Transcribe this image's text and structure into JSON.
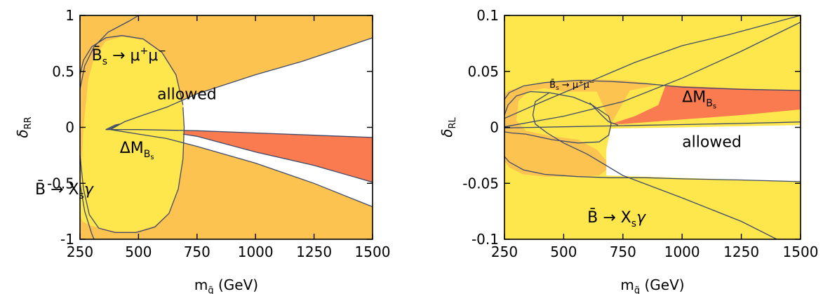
{
  "chart_data": [
    {
      "id": "left",
      "type": "area",
      "xlabel": "m",
      "xlabel_sub": "q̃",
      "xlabel_unit": "(GeV)",
      "ylabel": "δ",
      "ylabel_sub": "RR",
      "xlim": [
        250,
        1500
      ],
      "ylim": [
        -1,
        1
      ],
      "xticks": [
        "250",
        "500",
        "750",
        "1000",
        "1250",
        "1500"
      ],
      "xtick_values": [
        250,
        500,
        750,
        1000,
        1250,
        1500
      ],
      "yticks": [
        "1",
        "0.5",
        "0",
        "-0.5",
        "-1"
      ],
      "ytick_values": [
        1,
        0.5,
        0,
        -0.5,
        -1
      ],
      "colors": {
        "background": "#fde74c",
        "bs_mumu": "#fdc350",
        "delta_m": "#fb7b50",
        "allowed": "#ffffff",
        "curve": "#3f4a6a"
      },
      "labels": {
        "bs": {
          "base": "B̄",
          "sub": "s",
          "text": " → μ",
          "sup1": "+",
          "mu2": "μ",
          "sup2": "−",
          "x": 300,
          "y": 0.6
        },
        "allowed": {
          "text": "allowed",
          "x": 580,
          "y": 0.25
        },
        "dm": {
          "text": "ΔM",
          "sub": "B",
          "subsub": "s",
          "x": 420,
          "y": -0.23
        },
        "bxs": {
          "text": "B̄ → X",
          "sub": "s",
          "tail": "γ",
          "x": 58,
          "y": -0.6
        }
      },
      "regions": {
        "orange_upper": [
          [
            250,
            -0.02
          ],
          [
            250,
            1
          ],
          [
            1500,
            1
          ],
          [
            1500,
            0.8
          ],
          [
            1200,
            0.59
          ],
          [
            1000,
            0.47
          ],
          [
            750,
            0.3
          ],
          [
            620,
            0.18
          ],
          [
            520,
            0.11
          ],
          [
            440,
            0.05
          ],
          [
            380,
            0.01
          ]
        ],
        "orange_lower": [
          [
            250,
            -0.02
          ],
          [
            380,
            -0.02
          ],
          [
            500,
            -0.06
          ],
          [
            620,
            -0.1
          ],
          [
            750,
            -0.17
          ],
          [
            1000,
            -0.32
          ],
          [
            1250,
            -0.5
          ],
          [
            1500,
            -0.71
          ],
          [
            1500,
            -1
          ],
          [
            250,
            -1
          ]
        ],
        "white_allowed": [
          [
            380,
            -0.02
          ],
          [
            440,
            0.05
          ],
          [
            520,
            0.11
          ],
          [
            620,
            0.18
          ],
          [
            750,
            0.3
          ],
          [
            1000,
            0.47
          ],
          [
            1200,
            0.59
          ],
          [
            1500,
            0.8
          ],
          [
            1500,
            -0.71
          ],
          [
            1250,
            -0.5
          ],
          [
            1000,
            -0.32
          ],
          [
            750,
            -0.17
          ],
          [
            620,
            -0.1
          ],
          [
            500,
            -0.06
          ]
        ],
        "red_dm": [
          [
            690,
            -0.03
          ],
          [
            1000,
            -0.05
          ],
          [
            1250,
            -0.07
          ],
          [
            1500,
            -0.09
          ],
          [
            1500,
            -0.49
          ],
          [
            1250,
            -0.34
          ],
          [
            1000,
            -0.22
          ],
          [
            750,
            -0.08
          ],
          [
            690,
            -0.06
          ]
        ],
        "yellow_oval": [
          [
            250,
            -0.78
          ],
          [
            255,
            -0.4
          ],
          [
            265,
            0
          ],
          [
            285,
            0.42
          ],
          [
            310,
            0.62
          ],
          [
            360,
            0.77
          ],
          [
            430,
            0.81
          ],
          [
            520,
            0.78
          ],
          [
            600,
            0.66
          ],
          [
            660,
            0.46
          ],
          [
            690,
            0.22
          ],
          [
            695,
            0
          ],
          [
            690,
            -0.28
          ],
          [
            670,
            -0.55
          ],
          [
            630,
            -0.76
          ],
          [
            570,
            -0.88
          ],
          [
            490,
            -0.93
          ],
          [
            400,
            -0.93
          ],
          [
            340,
            -0.9
          ],
          [
            300,
            -0.88
          ],
          [
            260,
            -0.84
          ]
        ]
      },
      "curves": [
        [
          [
            250,
            0.47
          ],
          [
            265,
            0.6
          ],
          [
            300,
            0.72
          ],
          [
            360,
            0.8
          ],
          [
            430,
            0.82
          ],
          [
            520,
            0.79
          ],
          [
            600,
            0.67
          ],
          [
            660,
            0.47
          ],
          [
            690,
            0.2
          ]
        ],
        [
          [
            250,
            -0.25
          ],
          [
            265,
            -0.55
          ],
          [
            290,
            -0.78
          ],
          [
            330,
            -0.9
          ],
          [
            400,
            -0.94
          ],
          [
            490,
            -0.94
          ],
          [
            570,
            -0.89
          ],
          [
            630,
            -0.77
          ],
          [
            670,
            -0.55
          ],
          [
            690,
            -0.28
          ],
          [
            695,
            0
          ],
          [
            690,
            0.18
          ]
        ],
        [
          [
            250,
            0.34
          ],
          [
            270,
            0.55
          ],
          [
            310,
            0.72
          ],
          [
            370,
            0.85
          ],
          [
            460,
            0.95
          ],
          [
            500,
            1.0
          ]
        ],
        [
          [
            250,
            -0.5
          ],
          [
            270,
            -0.75
          ],
          [
            300,
            -0.95
          ],
          [
            310,
            -1
          ]
        ],
        [
          [
            380,
            -0.02
          ],
          [
            440,
            0.05
          ],
          [
            520,
            0.11
          ],
          [
            620,
            0.18
          ],
          [
            750,
            0.3
          ],
          [
            1000,
            0.47
          ],
          [
            1200,
            0.59
          ],
          [
            1500,
            0.8
          ]
        ],
        [
          [
            380,
            -0.02
          ],
          [
            500,
            -0.06
          ],
          [
            620,
            -0.1
          ],
          [
            750,
            -0.17
          ],
          [
            1000,
            -0.32
          ],
          [
            1250,
            -0.5
          ],
          [
            1500,
            -0.71
          ]
        ],
        [
          [
            360,
            -0.02
          ],
          [
            500,
            -0.02
          ],
          [
            750,
            -0.03
          ],
          [
            1000,
            -0.05
          ],
          [
            1250,
            -0.07
          ],
          [
            1500,
            -0.09
          ]
        ],
        [
          [
            690,
            -0.06
          ],
          [
            750,
            -0.08
          ],
          [
            1000,
            -0.22
          ],
          [
            1250,
            -0.34
          ],
          [
            1500,
            -0.49
          ]
        ],
        [
          [
            360,
            -0.02
          ],
          [
            380,
            0.0
          ],
          [
            400,
            0.02
          ],
          [
            420,
            0.03
          ],
          [
            400,
            0.01
          ],
          [
            380,
            -0.01
          ],
          [
            370,
            -0.02
          ]
        ]
      ]
    },
    {
      "id": "right",
      "type": "area",
      "xlabel": "m",
      "xlabel_sub": "q̃",
      "xlabel_unit": "(GeV)",
      "ylabel": "δ",
      "ylabel_sub": "RL",
      "xlim": [
        250,
        1500
      ],
      "ylim": [
        -0.1,
        0.1
      ],
      "xticks": [
        "250",
        "500",
        "750",
        "1000",
        "1250",
        "1500"
      ],
      "xtick_values": [
        250,
        500,
        750,
        1000,
        1250,
        1500
      ],
      "yticks": [
        "0.1",
        "0.05",
        "0",
        "-0.05",
        "-0.1"
      ],
      "ytick_values": [
        0.1,
        0.05,
        0,
        -0.05,
        -0.1
      ],
      "colors": {
        "background": "#fde74c",
        "bs_mumu": "#fdc350",
        "delta_m": "#fb7b50",
        "allowed": "#ffffff",
        "curve": "#3f4a6a"
      },
      "labels": {
        "bs": {
          "base": "B̄",
          "sub": "s",
          "text": " → μ",
          "sup1": "+",
          "mu2": "μ",
          "sup2": "−",
          "x": 440,
          "y": 0.0355
        },
        "allowed": {
          "text": "allowed",
          "x": 1000,
          "y": -0.0175
        },
        "dm": {
          "text": "ΔM",
          "sub": "B",
          "subsub": "s",
          "x": 1000,
          "y": 0.0225
        },
        "bxs": {
          "text": "B̄ → X",
          "sub": "s",
          "tail": "γ",
          "x": 600,
          "y": -0.085
        }
      },
      "regions": {
        "orange_ring": [
          [
            250,
            -0.03
          ],
          [
            270,
            -0.036
          ],
          [
            330,
            -0.042
          ],
          [
            420,
            -0.044
          ],
          [
            560,
            -0.044
          ],
          [
            650,
            -0.043
          ],
          [
            700,
            -0.035
          ],
          [
            640,
            -0.02
          ],
          [
            560,
            -0.011
          ],
          [
            450,
            -0.008
          ],
          [
            340,
            -0.003
          ],
          [
            300,
            0.006
          ],
          [
            310,
            0.024
          ],
          [
            350,
            0.032
          ],
          [
            420,
            0.035
          ],
          [
            500,
            0.032
          ],
          [
            640,
            0.032
          ],
          [
            700,
            0.003
          ],
          [
            780,
            0.033
          ],
          [
            900,
            0.038
          ],
          [
            760,
            0.042
          ],
          [
            620,
            0.043
          ],
          [
            500,
            0.042
          ],
          [
            400,
            0.039
          ],
          [
            320,
            0.036
          ],
          [
            270,
            0.033
          ],
          [
            250,
            0.03
          ]
        ],
        "white_allowed": [
          [
            680,
            -0.043
          ],
          [
            1500,
            -0.0485
          ],
          [
            1500,
            0.002
          ],
          [
            1000,
            0.0
          ],
          [
            700,
            -0.001
          ],
          [
            690,
            -0.01
          ],
          [
            680,
            -0.02
          ]
        ],
        "red_dm": [
          [
            700,
            0.003
          ],
          [
            800,
            0.01
          ],
          [
            900,
            0.02
          ],
          [
            930,
            0.0375
          ],
          [
            1200,
            0.035
          ],
          [
            1500,
            0.033
          ],
          [
            1500,
            0.016
          ],
          [
            1250,
            0.011
          ],
          [
            1000,
            0.007
          ],
          [
            750,
            0.003
          ]
        ]
      },
      "curves": [
        [
          [
            250,
            0.0005
          ],
          [
            500,
            0.01
          ],
          [
            750,
            0.023
          ],
          [
            1000,
            0.044
          ],
          [
            1250,
            0.068
          ],
          [
            1500,
            0.094
          ]
        ],
        [
          [
            250,
            0.008
          ],
          [
            400,
            0.022
          ],
          [
            600,
            0.04
          ],
          [
            800,
            0.058
          ],
          [
            1000,
            0.073
          ],
          [
            1200,
            0.083
          ],
          [
            1500,
            0.1
          ]
        ],
        [
          [
            250,
            -0.0005
          ],
          [
            500,
            0.0005
          ],
          [
            750,
            0.0015
          ],
          [
            1000,
            0.0025
          ],
          [
            1250,
            0.0035
          ],
          [
            1500,
            0.0048
          ]
        ],
        [
          [
            250,
            0.025
          ],
          [
            270,
            0.031
          ],
          [
            330,
            0.037
          ],
          [
            420,
            0.04
          ],
          [
            560,
            0.042
          ],
          [
            700,
            0.041
          ],
          [
            850,
            0.039
          ],
          [
            1000,
            0.036
          ],
          [
            1250,
            0.034
          ],
          [
            1500,
            0.033
          ]
        ],
        [
          [
            250,
            -0.026
          ],
          [
            270,
            -0.031
          ],
          [
            330,
            -0.038
          ],
          [
            420,
            -0.042
          ],
          [
            560,
            -0.044
          ],
          [
            700,
            -0.045
          ],
          [
            850,
            -0.045
          ],
          [
            1000,
            -0.046
          ],
          [
            1250,
            -0.047
          ],
          [
            1500,
            -0.0485
          ]
        ],
        [
          [
            250,
            0.011
          ],
          [
            265,
            0.02
          ],
          [
            300,
            0.028
          ],
          [
            360,
            0.032
          ],
          [
            440,
            0.031
          ],
          [
            540,
            0.027
          ],
          [
            620,
            0.02
          ],
          [
            690,
            0.01
          ],
          [
            700,
            0.003
          ],
          [
            690,
            -0.007
          ],
          [
            650,
            -0.013
          ],
          [
            560,
            -0.014
          ],
          [
            450,
            -0.011
          ],
          [
            340,
            -0.006
          ],
          [
            280,
            -0.005
          ],
          [
            250,
            -0.004
          ]
        ],
        [
          [
            440,
            0.031
          ],
          [
            380,
            0.023
          ],
          [
            370,
            0.011
          ],
          [
            380,
            0.003
          ],
          [
            430,
            -0.005
          ],
          [
            500,
            -0.014
          ],
          [
            600,
            -0.024
          ],
          [
            750,
            -0.043
          ],
          [
            1000,
            -0.063
          ],
          [
            1250,
            -0.084
          ],
          [
            1400,
            -0.1
          ]
        ],
        [
          [
            610,
            0.022
          ],
          [
            660,
            0.011
          ],
          [
            690,
            0.005
          ],
          [
            730,
            0.002
          ]
        ]
      ]
    }
  ]
}
